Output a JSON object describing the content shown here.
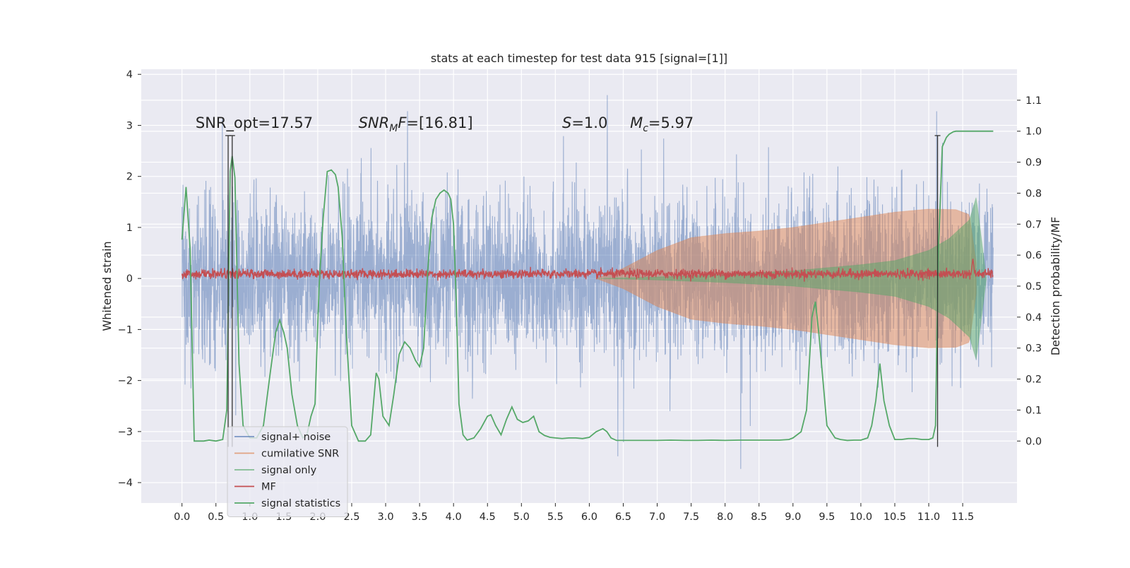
{
  "chart_data": {
    "type": "line",
    "title": "stats at each timestep for test data 915 [signal=[1]]",
    "xlabel": "",
    "ylabel": "Whitened strain",
    "y2label": "Detection probability/MF",
    "xlim": [
      -0.6,
      12.3
    ],
    "ylim": [
      -4.4,
      4.1
    ],
    "y2lim": [
      -0.2,
      1.2
    ],
    "x_ticks": [
      0.0,
      0.5,
      1.0,
      1.5,
      2.0,
      2.5,
      3.0,
      3.5,
      4.0,
      4.5,
      5.0,
      5.5,
      6.0,
      6.5,
      7.0,
      7.5,
      8.0,
      8.5,
      9.0,
      9.5,
      10.0,
      10.5,
      11.0,
      11.5
    ],
    "x_tick_labels": [
      "0.0",
      "0.5",
      "1.0",
      "1.5",
      "2.0",
      "2.5",
      "3.0",
      "3.5",
      "4.0",
      "4.5",
      "5.0",
      "5.5",
      "6.0",
      "6.5",
      "7.0",
      "7.5",
      "8.0",
      "8.5",
      "9.0",
      "9.5",
      "10.0",
      "10.5",
      "11.0",
      "11.5"
    ],
    "y_ticks": [
      -4,
      -3,
      -2,
      -1,
      0,
      1,
      2,
      3,
      4
    ],
    "y_tick_labels": [
      "−4",
      "−3",
      "−2",
      "−1",
      "0",
      "1",
      "2",
      "3",
      "4"
    ],
    "y2_ticks": [
      0.0,
      0.1,
      0.2,
      0.3,
      0.4,
      0.5,
      0.6,
      0.7,
      0.8,
      0.9,
      1.0,
      1.1
    ],
    "y2_tick_labels": [
      "0.0",
      "0.1",
      "0.2",
      "0.3",
      "0.4",
      "0.5",
      "0.6",
      "0.7",
      "0.8",
      "0.9",
      "1.0",
      "1.1"
    ],
    "grid": true,
    "legend_position": "lower-left",
    "background": "#eaeaf2",
    "annotations": [
      {
        "x": 0.2,
        "y": 2.95,
        "text": "SNR_opt=17.57",
        "style": "normal"
      },
      {
        "x": 2.6,
        "y": 2.95,
        "text": "SNR_MF=[16.81]",
        "style": "mf"
      },
      {
        "x": 5.6,
        "y": 2.95,
        "text": "S=1.0",
        "style": "s"
      },
      {
        "x": 6.6,
        "y": 2.95,
        "text": "M_c=5.97",
        "style": "mc"
      }
    ],
    "vlines": [
      {
        "x": 0.68,
        "ymin": -3.3,
        "ymax": 2.8
      },
      {
        "x": 0.74,
        "ymin": -3.3,
        "ymax": 2.8
      },
      {
        "x": 11.13,
        "ymin": -3.3,
        "ymax": 2.8
      }
    ],
    "series": [
      {
        "name": "signal+ noise",
        "color": "#4c72b0",
        "alpha": 0.5,
        "x_range": [
          0.0,
          11.95
        ],
        "noise_sigma": 0.9
      },
      {
        "name": "cumilative SNR",
        "color": "#dd8452",
        "alpha": 0.5,
        "x_range": [
          6.1,
          11.7
        ],
        "envelope_x": [
          6.1,
          6.5,
          7.0,
          7.5,
          8.0,
          8.5,
          9.0,
          9.5,
          10.0,
          10.5,
          11.0,
          11.4,
          11.6,
          11.7
        ],
        "envelope_y": [
          0.0,
          0.2,
          0.55,
          0.8,
          0.88,
          0.93,
          1.0,
          1.1,
          1.2,
          1.3,
          1.36,
          1.35,
          1.25,
          0.3
        ]
      },
      {
        "name": "signal only",
        "color": "#55a868",
        "alpha": 0.5,
        "x_range": [
          6.1,
          11.85
        ],
        "envelope_x": [
          6.1,
          7.0,
          8.0,
          9.0,
          10.0,
          10.5,
          11.0,
          11.3,
          11.6,
          11.7,
          11.85
        ],
        "envelope_y": [
          0.0,
          0.03,
          0.08,
          0.15,
          0.27,
          0.35,
          0.55,
          0.78,
          1.15,
          1.6,
          0.0
        ]
      },
      {
        "name": "MF",
        "color": "#c44e52",
        "alpha": 1.0,
        "baseline": 0.09,
        "spike_x": 11.65,
        "spike_y": 0.35
      },
      {
        "name": "signal statistics",
        "color": "#55a868",
        "alpha": 1.0,
        "axis": "y2",
        "x": [
          0.0,
          0.06,
          0.12,
          0.18,
          0.25,
          0.32,
          0.4,
          0.5,
          0.6,
          0.66,
          0.71,
          0.74,
          0.78,
          0.84,
          0.9,
          1.0,
          1.1,
          1.2,
          1.3,
          1.38,
          1.44,
          1.5,
          1.55,
          1.62,
          1.7,
          1.78,
          1.84,
          1.9,
          1.96,
          2.02,
          2.08,
          2.14,
          2.2,
          2.26,
          2.3,
          2.36,
          2.42,
          2.5,
          2.6,
          2.7,
          2.78,
          2.86,
          2.9,
          2.96,
          3.05,
          3.12,
          3.2,
          3.28,
          3.36,
          3.44,
          3.5,
          3.56,
          3.62,
          3.68,
          3.74,
          3.8,
          3.86,
          3.92,
          3.96,
          4.0,
          4.04,
          4.08,
          4.14,
          4.2,
          4.3,
          4.4,
          4.5,
          4.55,
          4.62,
          4.7,
          4.78,
          4.86,
          4.94,
          5.02,
          5.1,
          5.18,
          5.26,
          5.34,
          5.42,
          5.5,
          5.6,
          5.7,
          5.8,
          5.9,
          6.0,
          6.1,
          6.2,
          6.26,
          6.32,
          6.4,
          6.5,
          6.6,
          6.8,
          7.0,
          7.2,
          7.4,
          7.6,
          7.8,
          8.0,
          8.2,
          8.4,
          8.6,
          8.8,
          8.94,
          9.0,
          9.06,
          9.12,
          9.2,
          9.28,
          9.33,
          9.38,
          9.44,
          9.5,
          9.56,
          9.62,
          9.7,
          9.8,
          9.9,
          10.0,
          10.1,
          10.16,
          10.22,
          10.28,
          10.34,
          10.42,
          10.5,
          10.6,
          10.7,
          10.8,
          10.9,
          11.0,
          11.06,
          11.1,
          11.14,
          11.2,
          11.26,
          11.3,
          11.36,
          11.4,
          11.5,
          11.6,
          11.7,
          11.8,
          11.9,
          11.95
        ],
        "y": [
          0.65,
          0.82,
          0.62,
          0.0,
          0.0,
          0.0,
          0.003,
          0.0,
          0.005,
          0.1,
          0.87,
          0.92,
          0.85,
          0.25,
          0.05,
          0.01,
          0.01,
          0.05,
          0.22,
          0.35,
          0.39,
          0.35,
          0.3,
          0.15,
          0.05,
          0.01,
          0.02,
          0.08,
          0.12,
          0.5,
          0.72,
          0.87,
          0.875,
          0.86,
          0.82,
          0.66,
          0.35,
          0.05,
          0.0,
          0.0,
          0.02,
          0.22,
          0.2,
          0.08,
          0.05,
          0.15,
          0.28,
          0.32,
          0.3,
          0.26,
          0.24,
          0.3,
          0.55,
          0.72,
          0.78,
          0.8,
          0.81,
          0.8,
          0.78,
          0.7,
          0.45,
          0.12,
          0.02,
          0.003,
          0.01,
          0.04,
          0.08,
          0.085,
          0.05,
          0.02,
          0.07,
          0.11,
          0.07,
          0.06,
          0.065,
          0.08,
          0.03,
          0.018,
          0.012,
          0.01,
          0.008,
          0.01,
          0.01,
          0.008,
          0.012,
          0.03,
          0.04,
          0.03,
          0.01,
          0.002,
          0.002,
          0.002,
          0.002,
          0.002,
          0.003,
          0.002,
          0.002,
          0.003,
          0.002,
          0.003,
          0.003,
          0.003,
          0.003,
          0.005,
          0.01,
          0.02,
          0.03,
          0.1,
          0.4,
          0.45,
          0.35,
          0.2,
          0.05,
          0.03,
          0.01,
          0.005,
          0.002,
          0.003,
          0.003,
          0.01,
          0.05,
          0.13,
          0.25,
          0.13,
          0.05,
          0.005,
          0.005,
          0.008,
          0.008,
          0.005,
          0.005,
          0.01,
          0.05,
          0.6,
          0.95,
          0.98,
          0.99,
          0.998,
          1.0,
          1.0,
          1.0,
          1.0,
          1.0,
          1.0,
          1.0
        ]
      }
    ]
  }
}
